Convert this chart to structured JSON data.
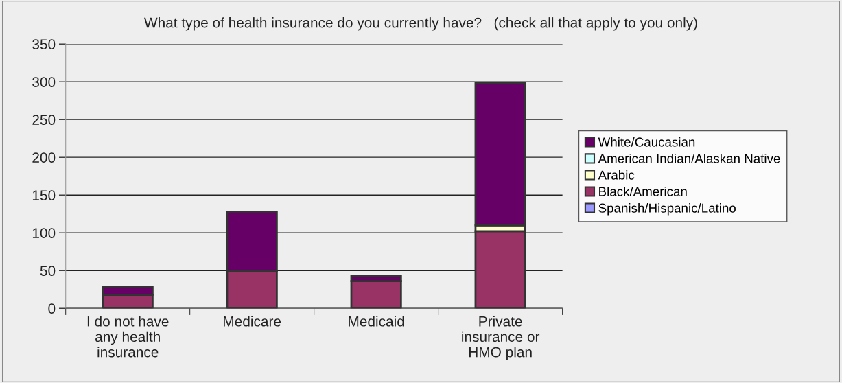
{
  "chart_data": {
    "type": "bar",
    "stacked": true,
    "title": "What type of health insurance do you currently have?   (check all that apply to you only)",
    "categories": [
      "I do not have\nany health\ninsurance",
      "Medicare",
      "Medicaid",
      "Private\ninsurance or\nHMO plan"
    ],
    "series": [
      {
        "name": "Spanish/Hispanic/Latino",
        "color": "#9999ff",
        "values": [
          0,
          0,
          0,
          null
        ]
      },
      {
        "name": "Black/American",
        "color": "#993366",
        "values": [
          18,
          49,
          36,
          102
        ]
      },
      {
        "name": "Arabic",
        "color": "#ffffcc",
        "values": [
          0,
          0,
          0,
          8
        ]
      },
      {
        "name": "American Indian/Alaskan Native",
        "color": "#ccffff",
        "values": [
          0,
          0,
          0,
          0
        ]
      },
      {
        "name": "White/Caucasian",
        "color": "#660066",
        "values": [
          11,
          79,
          7,
          188
        ]
      }
    ],
    "ylim": [
      0,
      350
    ],
    "yticks": [
      0,
      50,
      100,
      150,
      200,
      250,
      300,
      350
    ],
    "grid": "y",
    "legend": "right"
  }
}
